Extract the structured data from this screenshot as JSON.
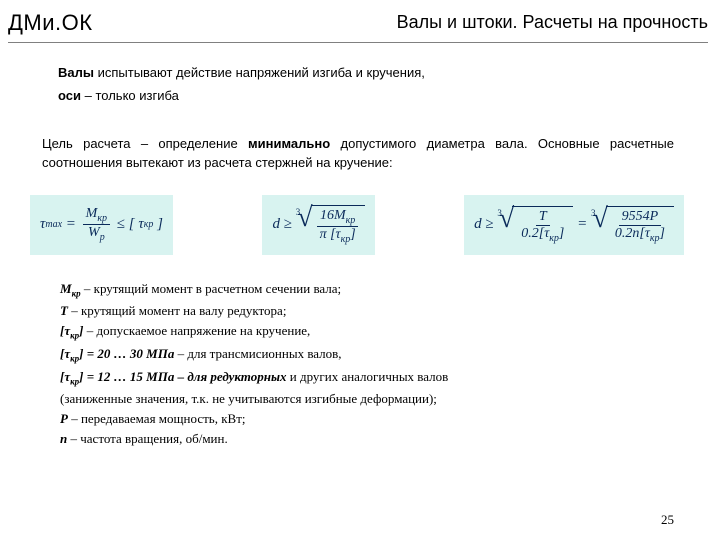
{
  "header": {
    "logo": "ДМи.ОК",
    "title": "Валы и штоки. Расчеты на прочность"
  },
  "intro": {
    "line1_bold": "Валы",
    "line1_rest": " испытывают действие напряжений изгиба и кручения,",
    "line2_bold": "оси",
    "line2_rest": " – только изгиба"
  },
  "goal": {
    "part1": "Цель расчета – определение ",
    "bold": "минимально",
    "part2": " допустимого диаметра вала. Основные расчетные соотношения вытекают из расчета стержней на кручение:"
  },
  "formulas": {
    "tau": "τ",
    "max": "max",
    "Mkr": "M",
    "kr": "кр",
    "Wp": "W",
    "p": "p",
    "le": "≤",
    "lb": "[",
    "rb": "]",
    "d": "d",
    "ge": "≥",
    "three": "3",
    "sixteen": "16",
    "pi": "π",
    "T": "T",
    "c02": "0.2",
    "eq": "=",
    "c9554": "9554",
    "P": "P",
    "n": "n"
  },
  "defs": {
    "l1a": "M",
    "l1sub": "кр",
    "l1b": " – крутящий момент в расчетном сечении вала;",
    "l2a": "Т",
    "l2b": " – крутящий момент на валу редуктора;",
    "l3a": "[τ",
    "l3sub": "кр",
    "l3b": "]",
    "l3c": " – допускаемое напряжение на кручение,",
    "l4a": "[τ",
    "l4sub": "кр",
    "l4b": "] = 20 … 30 МПа",
    "l4c": " – для трансмисионных валов,",
    "l5a": "[τ",
    "l5sub": "кр",
    "l5b": "] = 12 … 15 МПа – для редукторных",
    "l5c": " и других аналогичных валов",
    "l6": "(заниженные значения, т.к. не учитываются изгибные деформации);",
    "l7a": "Р",
    "l7b": " – передаваемая мощность, кВт;",
    "l8a": "n",
    "l8b": " – частота вращения, об/мин."
  },
  "pagenum": "25"
}
